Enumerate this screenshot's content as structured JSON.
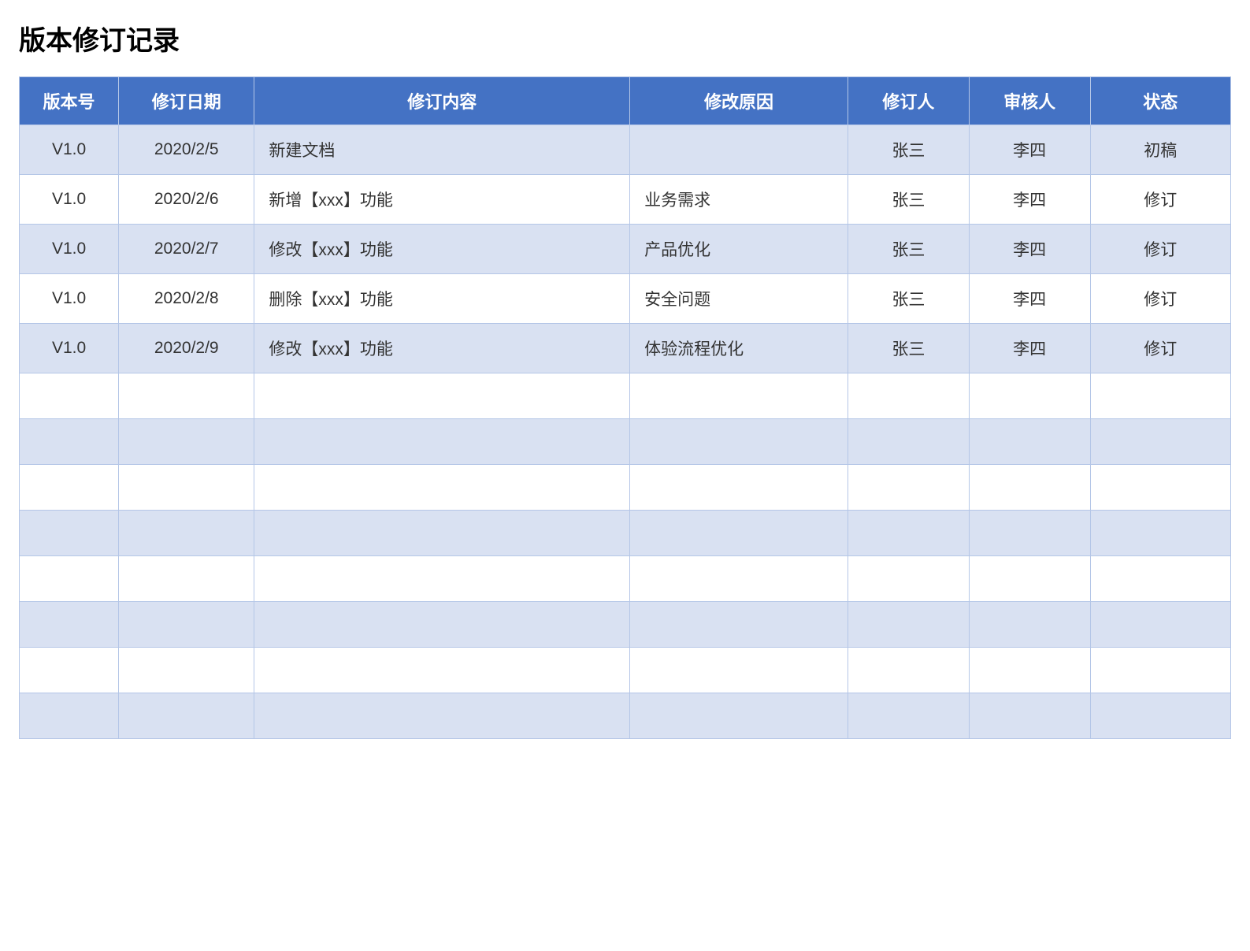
{
  "title": "版本修订记录",
  "table": {
    "type": "table",
    "header_bg": "#4472c4",
    "header_fg": "#ffffff",
    "row_odd_bg": "#d9e1f2",
    "row_even_bg": "#ffffff",
    "border_color": "#b4c6e7",
    "header_fontsize": 22,
    "cell_fontsize": 21,
    "columns": [
      {
        "key": "version",
        "label": "版本号",
        "width_pct": 8.2,
        "align": "center"
      },
      {
        "key": "date",
        "label": "修订日期",
        "width_pct": 11.2,
        "align": "center"
      },
      {
        "key": "content",
        "label": "修订内容",
        "width_pct": 31.0,
        "align": "left"
      },
      {
        "key": "reason",
        "label": "修改原因",
        "width_pct": 18.0,
        "align": "center"
      },
      {
        "key": "editor",
        "label": "修订人",
        "width_pct": 10.0,
        "align": "center"
      },
      {
        "key": "reviewer",
        "label": "审核人",
        "width_pct": 10.0,
        "align": "center"
      },
      {
        "key": "status",
        "label": "状态",
        "width_pct": 11.6,
        "align": "center"
      }
    ],
    "rows": [
      {
        "version": "V1.0",
        "date": "2020/2/5",
        "content": "新建文档",
        "reason": "",
        "editor": "张三",
        "reviewer": "李四",
        "status": "初稿"
      },
      {
        "version": "V1.0",
        "date": "2020/2/6",
        "content": "新增【xxx】功能",
        "reason": "业务需求",
        "editor": "张三",
        "reviewer": "李四",
        "status": "修订"
      },
      {
        "version": "V1.0",
        "date": "2020/2/7",
        "content": "修改【xxx】功能",
        "reason": "产品优化",
        "editor": "张三",
        "reviewer": "李四",
        "status": "修订"
      },
      {
        "version": "V1.0",
        "date": "2020/2/8",
        "content": "删除【xxx】功能",
        "reason": "安全问题",
        "editor": "张三",
        "reviewer": "李四",
        "status": "修订"
      },
      {
        "version": "V1.0",
        "date": "2020/2/9",
        "content": "修改【xxx】功能",
        "reason": "体验流程优化",
        "editor": "张三",
        "reviewer": "李四",
        "status": "修订"
      },
      {
        "version": "",
        "date": "",
        "content": "",
        "reason": "",
        "editor": "",
        "reviewer": "",
        "status": ""
      },
      {
        "version": "",
        "date": "",
        "content": "",
        "reason": "",
        "editor": "",
        "reviewer": "",
        "status": ""
      },
      {
        "version": "",
        "date": "",
        "content": "",
        "reason": "",
        "editor": "",
        "reviewer": "",
        "status": ""
      },
      {
        "version": "",
        "date": "",
        "content": "",
        "reason": "",
        "editor": "",
        "reviewer": "",
        "status": ""
      },
      {
        "version": "",
        "date": "",
        "content": "",
        "reason": "",
        "editor": "",
        "reviewer": "",
        "status": ""
      },
      {
        "version": "",
        "date": "",
        "content": "",
        "reason": "",
        "editor": "",
        "reviewer": "",
        "status": ""
      },
      {
        "version": "",
        "date": "",
        "content": "",
        "reason": "",
        "editor": "",
        "reviewer": "",
        "status": ""
      },
      {
        "version": "",
        "date": "",
        "content": "",
        "reason": "",
        "editor": "",
        "reviewer": "",
        "status": ""
      }
    ]
  }
}
